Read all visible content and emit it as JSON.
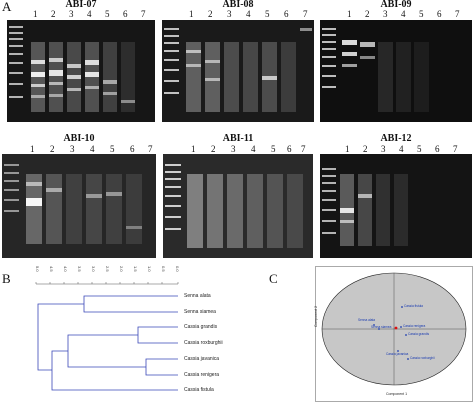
{
  "panel_letters": {
    "A": "A",
    "B": "B",
    "C": "C"
  },
  "gels": [
    {
      "title": "ABI-07",
      "lanes": [
        "1",
        "2",
        "3",
        "4",
        "5",
        "6",
        "7"
      ]
    },
    {
      "title": "ABI-08",
      "lanes": [
        "1",
        "2",
        "3",
        "4",
        "5",
        "6",
        "7"
      ]
    },
    {
      "title": "ABI-09",
      "lanes": [
        "1",
        "2",
        "3",
        "4",
        "5",
        "6",
        "7"
      ]
    },
    {
      "title": "ABI-10",
      "lanes": [
        "1",
        "2",
        "3",
        "4",
        "5",
        "6",
        "7"
      ]
    },
    {
      "title": "ABI-11",
      "lanes": [
        "1",
        "2",
        "3",
        "4",
        "5",
        "6",
        "7"
      ]
    },
    {
      "title": "ABI-12",
      "lanes": [
        "1",
        "2",
        "3",
        "4",
        "5",
        "6",
        "7"
      ]
    }
  ],
  "dendrogram": {
    "scale_ticks": [
      "5.0",
      "4.5",
      "4.0",
      "3.5",
      "3.0",
      "2.5",
      "2.0",
      "1.5",
      "1.0",
      "0.5",
      "0.0"
    ],
    "leaves": [
      "Senna alata",
      "Senna siamea",
      "Cassia grandis",
      "Cassia roxburghii",
      "Cassia javanica",
      "Cassia renigera",
      "Cassia fistula"
    ],
    "line_color": "#3a47b8"
  },
  "pca": {
    "ylabel": "Component 2",
    "xlabel": "Component 1",
    "points": [
      "Cassia fistula",
      "Senna alata",
      "Senna siamea",
      "Cassia renigera",
      "Cassia grandis",
      "Cassia javanica",
      "Cassia roxburghii"
    ],
    "ellipse_color": "#c7c7c7",
    "point_color": "#1a3bb0"
  }
}
